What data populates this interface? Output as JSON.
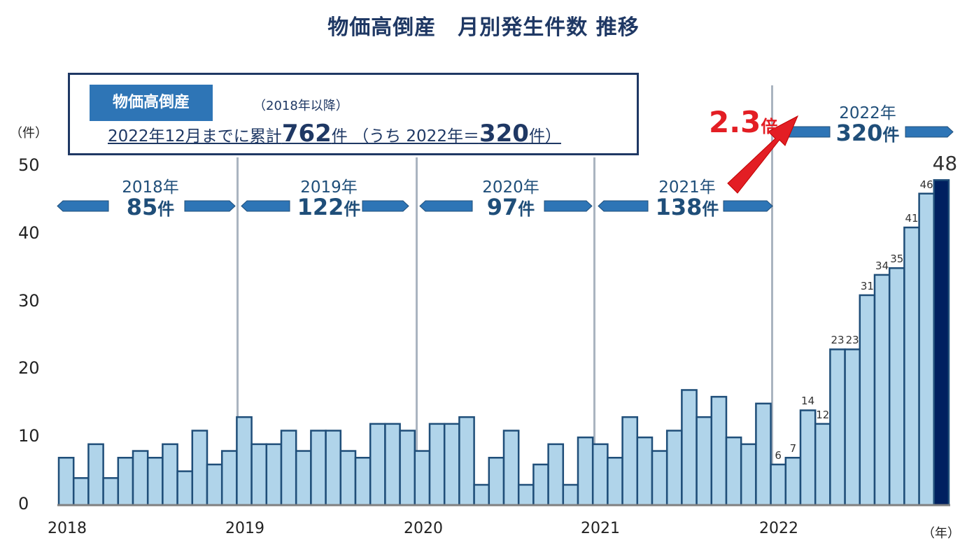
{
  "title": "物価高倒産　月別発生件数 推移",
  "infobox": {
    "tag": "物価高倒産",
    "since": "（2018年以降）",
    "summary_prefix": "2022年12月までに累計",
    "total": "762",
    "summary_mid": "件 （うち 2022年＝",
    "total_2022": "320",
    "summary_suffix": "件）"
  },
  "y_unit": "（件）",
  "x_unit": "（年）",
  "multiplier": {
    "value": "2.3",
    "unit": "倍"
  },
  "year_summaries": [
    {
      "year": "2018年",
      "count": "85",
      "unit": "件"
    },
    {
      "year": "2019年",
      "count": "122",
      "unit": "件"
    },
    {
      "year": "2020年",
      "count": "97",
      "unit": "件"
    },
    {
      "year": "2021年",
      "count": "138",
      "unit": "件"
    },
    {
      "year": "2022年",
      "count": "320",
      "unit": "件"
    }
  ],
  "colors": {
    "bar": "#b0d4ea",
    "bar_stroke": "#1f4e79",
    "last_bar": "#002060",
    "arrow": "#2e75b6",
    "text": "#1f3864",
    "accent_red": "#e31e24"
  },
  "chart_data": {
    "type": "bar",
    "title": "物価高倒産　月別発生件数 推移",
    "xlabel": "（年）",
    "ylabel": "（件）",
    "ylim": [
      0,
      50
    ],
    "yticks": [
      0,
      10,
      20,
      30,
      40,
      50
    ],
    "xticks": [
      "2018",
      "2019",
      "2020",
      "2021",
      "2022"
    ],
    "grid": false,
    "categories": [
      "2018-01",
      "2018-02",
      "2018-03",
      "2018-04",
      "2018-05",
      "2018-06",
      "2018-07",
      "2018-08",
      "2018-09",
      "2018-10",
      "2018-11",
      "2018-12",
      "2019-01",
      "2019-02",
      "2019-03",
      "2019-04",
      "2019-05",
      "2019-06",
      "2019-07",
      "2019-08",
      "2019-09",
      "2019-10",
      "2019-11",
      "2019-12",
      "2020-01",
      "2020-02",
      "2020-03",
      "2020-04",
      "2020-05",
      "2020-06",
      "2020-07",
      "2020-08",
      "2020-09",
      "2020-10",
      "2020-11",
      "2020-12",
      "2021-01",
      "2021-02",
      "2021-03",
      "2021-04",
      "2021-05",
      "2021-06",
      "2021-07",
      "2021-08",
      "2021-09",
      "2021-10",
      "2021-11",
      "2021-12",
      "2022-01",
      "2022-02",
      "2022-03",
      "2022-04",
      "2022-05",
      "2022-06",
      "2022-07",
      "2022-08",
      "2022-09",
      "2022-10",
      "2022-11",
      "2022-12"
    ],
    "values": [
      7,
      4,
      9,
      4,
      7,
      8,
      7,
      9,
      5,
      11,
      6,
      8,
      13,
      9,
      9,
      11,
      8,
      11,
      11,
      8,
      7,
      12,
      12,
      11,
      8,
      12,
      12,
      13,
      3,
      7,
      11,
      3,
      6,
      9,
      3,
      10,
      9,
      7,
      13,
      10,
      8,
      11,
      17,
      13,
      16,
      10,
      9,
      15,
      6,
      7,
      14,
      12,
      23,
      23,
      31,
      34,
      35,
      41,
      46,
      48
    ],
    "labeled_values_2022": [
      6,
      7,
      14,
      12,
      23,
      23,
      31,
      34,
      35,
      41,
      46,
      48
    ],
    "annual_totals": {
      "2018": 85,
      "2019": 122,
      "2020": 97,
      "2021": 138,
      "2022": 320
    },
    "cumulative_total": 762,
    "annotation": "2.3倍"
  }
}
